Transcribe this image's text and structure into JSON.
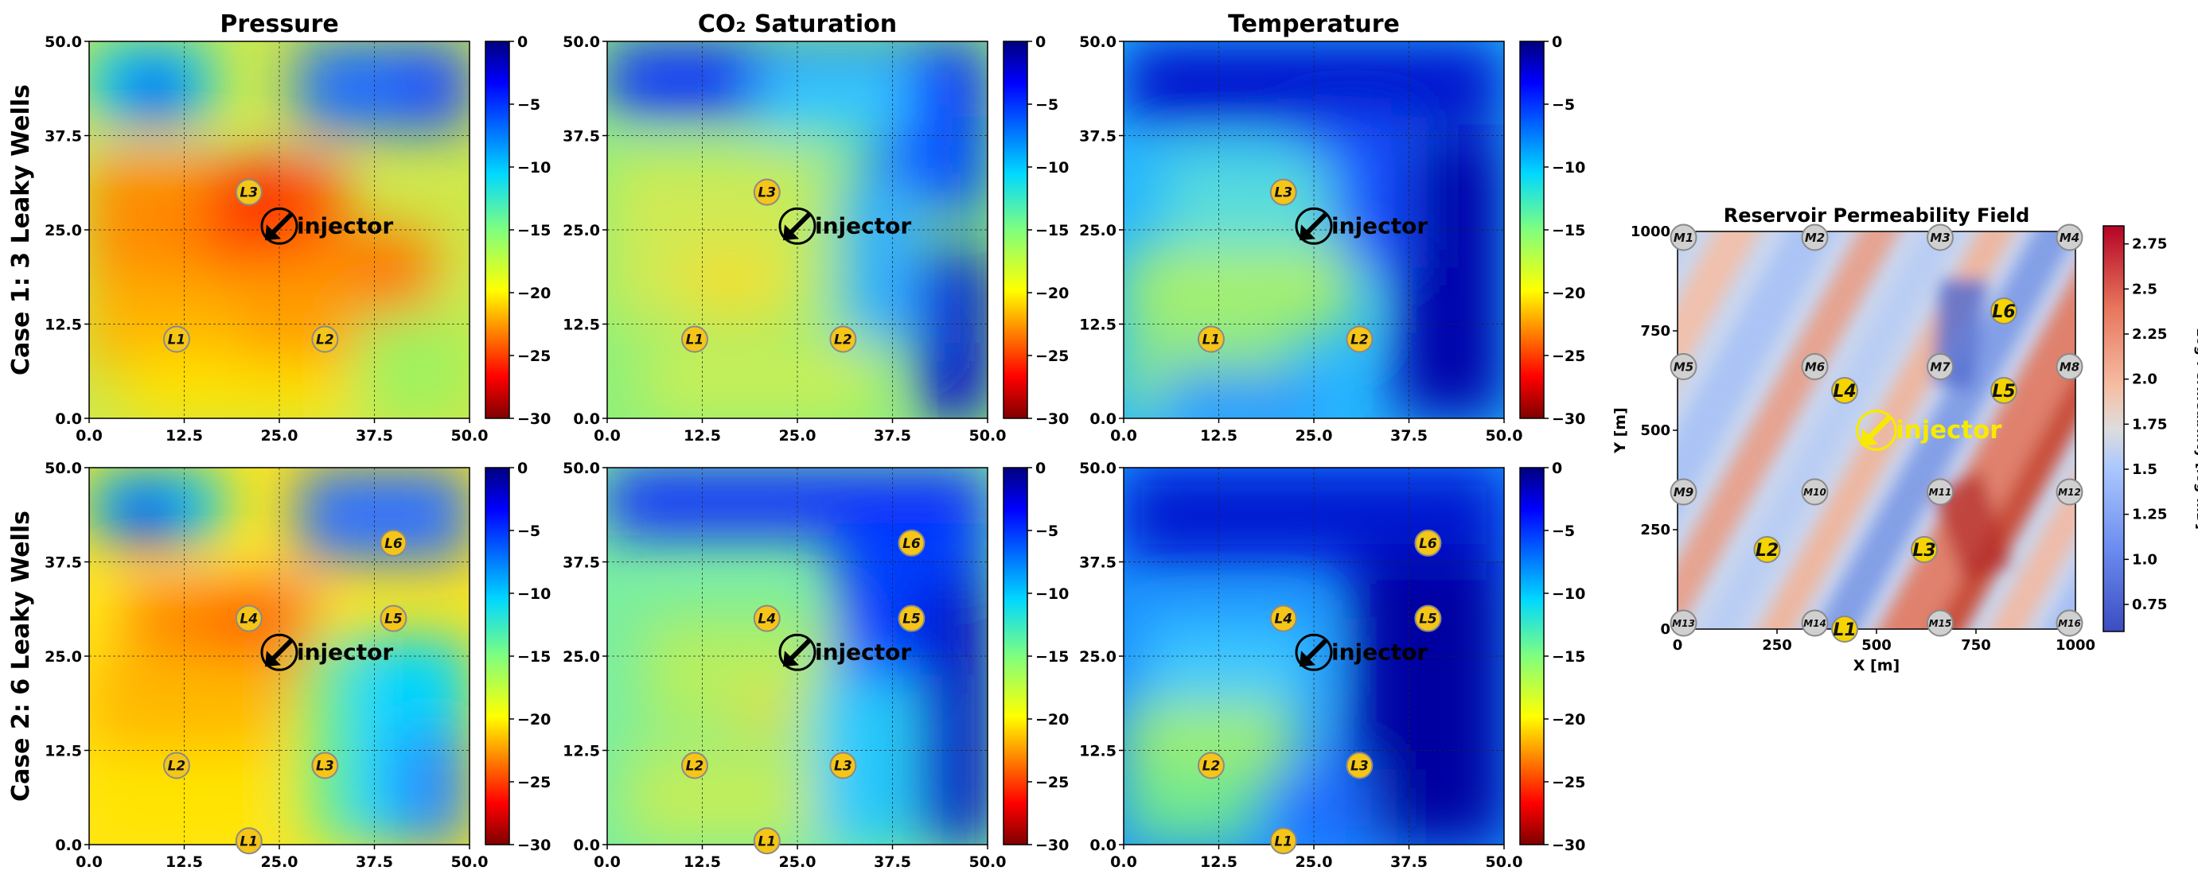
{
  "chart_data": [
    {
      "type": "heatmap",
      "row_label": "Case 1: 3 Leaky Wells",
      "column_titles": [
        "Pressure",
        "CO₂ Saturation",
        "Temperature"
      ],
      "xlim": [
        0,
        50
      ],
      "ylim": [
        0,
        50
      ],
      "x_ticks": [
        "0.0",
        "12.5",
        "25.0",
        "37.5",
        "50.0"
      ],
      "y_ticks": [
        "0.0",
        "12.5",
        "25.0",
        "37.5",
        "50.0"
      ],
      "colorbar": {
        "vmin": -30,
        "vmax": 0,
        "colormap": "jet_r",
        "ticks": [
          "0",
          "−5",
          "−10",
          "−15",
          "−20",
          "−25",
          "−30"
        ]
      },
      "grid": true,
      "injector": {
        "label": "injector",
        "x": 25.0,
        "y": 25.5
      },
      "leaky_wells": [
        {
          "label": "L1",
          "x": 11.5,
          "y": 10.5
        },
        {
          "label": "L2",
          "x": 31.0,
          "y": 10.5
        },
        {
          "label": "L3",
          "x": 21.0,
          "y": 30.0
        }
      ]
    },
    {
      "type": "heatmap",
      "row_label": "Case 2: 6 Leaky Wells",
      "column_titles": [
        "Pressure",
        "CO₂ Saturation",
        "Temperature"
      ],
      "xlim": [
        0,
        50
      ],
      "ylim": [
        0,
        50
      ],
      "x_ticks": [
        "0.0",
        "12.5",
        "25.0",
        "37.5",
        "50.0"
      ],
      "y_ticks": [
        "0.0",
        "12.5",
        "25.0",
        "37.5",
        "50.0"
      ],
      "colorbar": {
        "vmin": -30,
        "vmax": 0,
        "colormap": "jet_r",
        "ticks": [
          "0",
          "−5",
          "−10",
          "−15",
          "−20",
          "−25",
          "−30"
        ]
      },
      "grid": true,
      "injector": {
        "label": "injector",
        "x": 25.0,
        "y": 25.5
      },
      "leaky_wells": [
        {
          "label": "L1",
          "x": 21.0,
          "y": 0.5
        },
        {
          "label": "L2",
          "x": 11.5,
          "y": 10.5
        },
        {
          "label": "L3",
          "x": 31.0,
          "y": 10.5
        },
        {
          "label": "L4",
          "x": 21.0,
          "y": 30.0
        },
        {
          "label": "L5",
          "x": 40.0,
          "y": 30.0
        },
        {
          "label": "L6",
          "x": 40.0,
          "y": 40.0
        }
      ]
    },
    {
      "type": "heatmap",
      "title": "Reservoir Permeability Field",
      "xlabel": "X [m]",
      "ylabel": "Y [m]",
      "xlim": [
        0,
        1000
      ],
      "ylim": [
        0,
        1000
      ],
      "x_ticks": [
        "0",
        "250",
        "500",
        "750",
        "1000"
      ],
      "y_ticks": [
        "0",
        "250",
        "500",
        "750",
        "1000"
      ],
      "colorbar": {
        "label": "Log-Permeability [log-mD]",
        "vmin": 0.6,
        "vmax": 2.85,
        "colormap": "coolwarm",
        "ticks": [
          "0.75",
          "1.0",
          "1.25",
          "1.5",
          "1.75",
          "2.0",
          "2.25",
          "2.5",
          "2.75"
        ]
      },
      "injector": {
        "label": "injector",
        "x": 500,
        "y": 500
      },
      "monitoring_wells": [
        {
          "label": "M1",
          "x": 15,
          "y": 985
        },
        {
          "label": "M2",
          "x": 345,
          "y": 985
        },
        {
          "label": "M3",
          "x": 660,
          "y": 985
        },
        {
          "label": "M4",
          "x": 985,
          "y": 985
        },
        {
          "label": "M5",
          "x": 15,
          "y": 660
        },
        {
          "label": "M6",
          "x": 345,
          "y": 660
        },
        {
          "label": "M7",
          "x": 660,
          "y": 660
        },
        {
          "label": "M8",
          "x": 985,
          "y": 660
        },
        {
          "label": "M9",
          "x": 15,
          "y": 345
        },
        {
          "label": "M10",
          "x": 345,
          "y": 345
        },
        {
          "label": "M11",
          "x": 660,
          "y": 345
        },
        {
          "label": "M12",
          "x": 985,
          "y": 345
        },
        {
          "label": "M13",
          "x": 15,
          "y": 15
        },
        {
          "label": "M14",
          "x": 345,
          "y": 15
        },
        {
          "label": "M15",
          "x": 660,
          "y": 15
        },
        {
          "label": "M16",
          "x": 985,
          "y": 15
        }
      ],
      "leaky_wells": [
        {
          "label": "L1",
          "x": 420,
          "y": 0
        },
        {
          "label": "L2",
          "x": 225,
          "y": 200
        },
        {
          "label": "L3",
          "x": 620,
          "y": 200
        },
        {
          "label": "L4",
          "x": 420,
          "y": 600
        },
        {
          "label": "L5",
          "x": 820,
          "y": 600
        },
        {
          "label": "L6",
          "x": 820,
          "y": 800
        }
      ]
    }
  ]
}
